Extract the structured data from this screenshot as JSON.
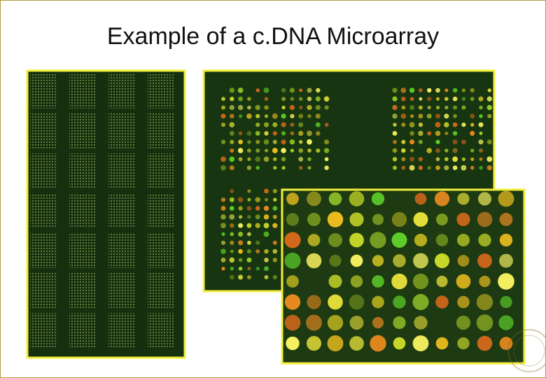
{
  "header": {
    "title": "Example of a c.DNA Microarray"
  }
}
